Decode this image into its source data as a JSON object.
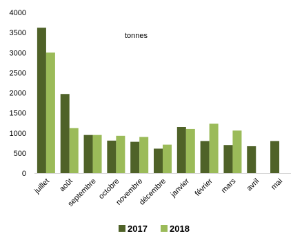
{
  "chart_data": {
    "type": "bar",
    "categories": [
      "juillet",
      "août",
      "septembre",
      "octobre",
      "novembre",
      "décembre",
      "janvier",
      "février",
      "mars",
      "avril",
      "mai"
    ],
    "series": [
      {
        "name": "2017",
        "color": "#4f6228",
        "values": [
          3620,
          1970,
          950,
          810,
          780,
          610,
          1150,
          800,
          700,
          670,
          800
        ]
      },
      {
        "name": "2018",
        "color": "#9bbb59",
        "values": [
          3000,
          1120,
          950,
          930,
          900,
          710,
          1100,
          1230,
          1060,
          null,
          null
        ]
      }
    ],
    "annotation": "tonnes",
    "ylim": [
      0,
      4000
    ],
    "yticks": [
      0,
      500,
      1000,
      1500,
      2000,
      2500,
      3000,
      3500,
      4000
    ],
    "grid": false,
    "legend_position": "bottom"
  }
}
